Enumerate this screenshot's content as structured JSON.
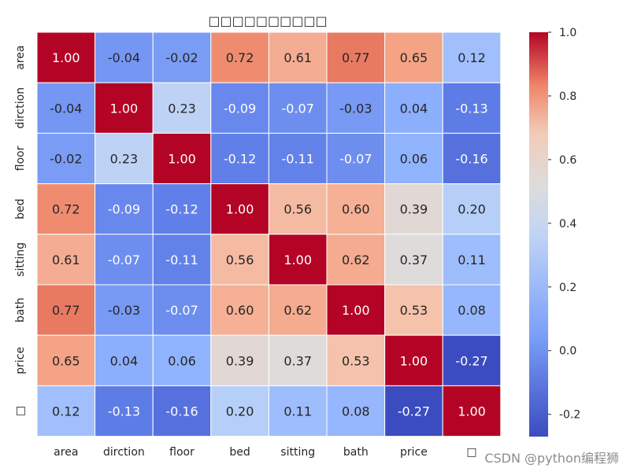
{
  "chart_data": {
    "type": "heatmap",
    "title": "□□□□□□□□□□",
    "row_labels": [
      "area",
      "dirction",
      "floor",
      "bed",
      "sitting",
      "bath",
      "price",
      "□"
    ],
    "column_labels": [
      "area",
      "dirction",
      "floor",
      "bed",
      "sitting",
      "bath",
      "price",
      "□"
    ],
    "values": [
      [
        1.0,
        -0.04,
        -0.02,
        0.72,
        0.61,
        0.77,
        0.65,
        0.12
      ],
      [
        -0.04,
        1.0,
        0.23,
        -0.09,
        -0.07,
        -0.03,
        0.04,
        -0.13
      ],
      [
        -0.02,
        0.23,
        1.0,
        -0.12,
        -0.11,
        -0.07,
        0.06,
        -0.16
      ],
      [
        0.72,
        -0.09,
        -0.12,
        1.0,
        0.56,
        0.6,
        0.39,
        0.2
      ],
      [
        0.61,
        -0.07,
        -0.11,
        0.56,
        1.0,
        0.62,
        0.37,
        0.11
      ],
      [
        0.77,
        -0.03,
        -0.07,
        0.6,
        0.62,
        1.0,
        0.53,
        0.08
      ],
      [
        0.65,
        0.04,
        0.06,
        0.39,
        0.37,
        0.53,
        1.0,
        -0.27
      ],
      [
        0.12,
        -0.13,
        -0.16,
        0.2,
        0.11,
        0.08,
        -0.27,
        1.0
      ]
    ],
    "colormap": "coolwarm",
    "vmin": -0.27,
    "vmax": 1.0,
    "annotation_format": "0.00",
    "colorbar": {
      "ticks": [
        1.0,
        0.8,
        0.6,
        0.4,
        0.2,
        0.0,
        -0.2
      ],
      "tick_labels": [
        "1.0",
        "0.8",
        "0.6",
        "0.4",
        "0.2",
        "0.0",
        "-0.2"
      ]
    },
    "xlabel": "",
    "ylabel": ""
  },
  "watermark": "CSDN @python编程狮"
}
